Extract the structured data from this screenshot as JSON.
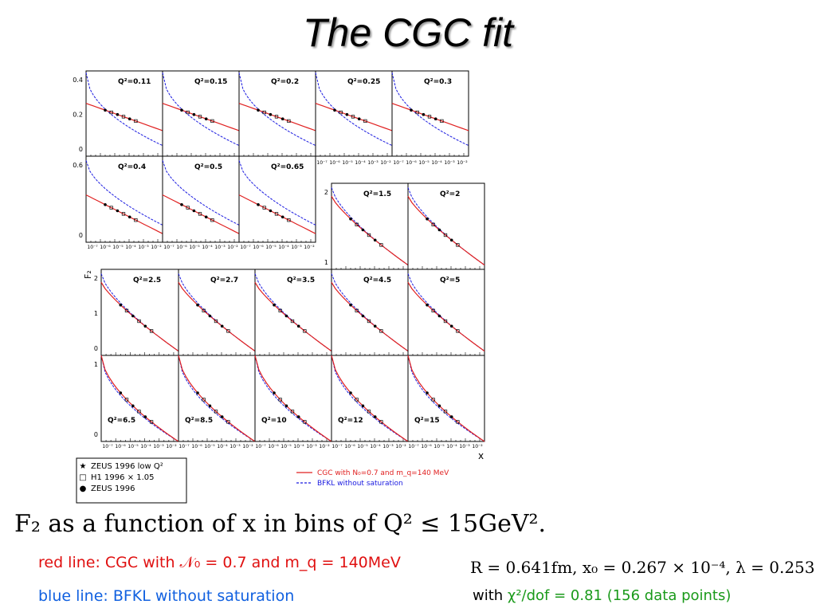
{
  "slide": {
    "title": "The CGC fit",
    "caption_main": "F₂ as a function of x in bins of Q² ≤ 15GeV².",
    "caption_red": "red line: CGC with 𝒩₀ = 0.7 and m_q = 140MeV",
    "caption_blue": "blue line: BFKL without saturation",
    "params": "R = 0.641fm, x₀ = 0.267 × 10⁻⁴, λ = 0.253",
    "chi_prefix": "with ",
    "chi_value": "χ²/dof = 0.81 (156 data points)"
  },
  "colors": {
    "cgc": "#e02020",
    "bfkl": "#1a1ae0",
    "text_red": "#e01010",
    "text_blue": "#1060e0",
    "green": "#1a9a1a"
  },
  "chart_data": {
    "type": "line",
    "ylabel": "F₂",
    "xlabel": "x",
    "x_scale": "log",
    "x_tick_labels": [
      "10⁻⁷",
      "10⁻⁶",
      "10⁻⁵",
      "10⁻⁴",
      "10⁻³",
      "10⁻²"
    ],
    "legend_markers": [
      {
        "symbol": "★",
        "label": "ZEUS 1996 low Q²"
      },
      {
        "symbol": "□",
        "label": "H1 1996 × 1.05"
      },
      {
        "symbol": "●",
        "label": "ZEUS 1996"
      }
    ],
    "legend_lines": [
      {
        "style": "solid",
        "color": "#e02020",
        "label": "CGC with N₀=0.7 and m_q=140 MeV"
      },
      {
        "style": "dashed",
        "color": "#1a1ae0",
        "label": "BFKL without saturation"
      }
    ],
    "rows": [
      {
        "ylim": [
          0,
          0.4
        ],
        "y_tick_labels": [
          "0.4",
          "0.2",
          "0"
        ]
      },
      {
        "ylim": [
          0,
          1.0
        ],
        "y_tick_labels": [
          "0.6",
          "0"
        ]
      },
      {
        "ylim": [
          0,
          2
        ],
        "y_tick_labels": [
          "2",
          "1"
        ]
      },
      {
        "ylim": [
          0,
          2
        ],
        "y_tick_labels": [
          "2",
          "1",
          "0"
        ]
      },
      {
        "ylim": [
          0,
          2
        ],
        "y_tick_labels": [
          "1",
          "0"
        ]
      }
    ],
    "panels": [
      {
        "label": "Q²=0.11"
      },
      {
        "label": "Q²=0.15"
      },
      {
        "label": "Q²=0.2"
      },
      {
        "label": "Q²=0.25"
      },
      {
        "label": "Q²=0.3"
      },
      {
        "label": "Q²=0.4"
      },
      {
        "label": "Q²=0.5"
      },
      {
        "label": "Q²=0.65"
      },
      {
        "label": "Q²=1.5"
      },
      {
        "label": "Q²=2"
      },
      {
        "label": "Q²=2.5"
      },
      {
        "label": "Q²=2.7"
      },
      {
        "label": "Q²=3.5"
      },
      {
        "label": "Q²=4.5"
      },
      {
        "label": "Q²=5"
      },
      {
        "label": "Q²=6.5"
      },
      {
        "label": "Q²=8.5"
      },
      {
        "label": "Q²=10"
      },
      {
        "label": "Q²=12"
      },
      {
        "label": "Q²=15"
      }
    ]
  }
}
